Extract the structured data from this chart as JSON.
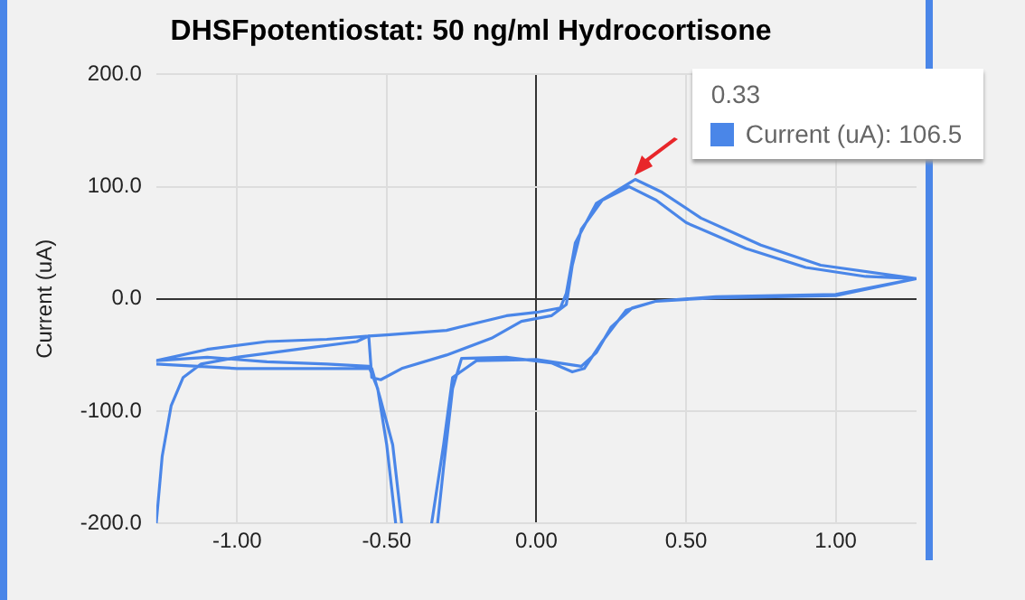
{
  "chart_data": {
    "type": "line",
    "title": "DHSFpotentiostat: 50 ng/ml Hydrocortisone",
    "ylabel": "Current (uA)",
    "series": [
      {
        "color": "#4a86e8",
        "x": [
          -1.27,
          -1.25,
          -1.22,
          -1.18,
          -1.12,
          -1.0,
          -0.8,
          -0.6,
          -0.56,
          -0.55,
          -0.52,
          -0.45,
          -0.3,
          -0.15,
          -0.05,
          0.05,
          0.1,
          0.12,
          0.15,
          0.22,
          0.31,
          0.4,
          0.5,
          0.7,
          0.9,
          1.1,
          1.27,
          1.0,
          0.6,
          0.4,
          0.3,
          0.22,
          0.16,
          0.12,
          0.05,
          -0.1,
          -0.25,
          -0.28,
          -0.31,
          -0.33,
          -0.4,
          -0.47,
          -0.5,
          -0.53,
          -0.56,
          -0.7,
          -0.9,
          -1.1,
          -1.27,
          -1.1,
          -0.9,
          -0.7,
          -0.56,
          -0.5,
          -0.3,
          -0.1,
          0.0,
          0.08,
          0.1,
          0.13,
          0.2,
          0.33,
          0.42,
          0.55,
          0.75,
          0.95,
          1.27,
          1.0,
          0.6,
          0.4,
          0.32,
          0.25,
          0.2,
          0.15,
          0.1,
          0.0,
          -0.2,
          -0.28,
          -0.31,
          -0.35,
          -0.4,
          -0.45,
          -0.48,
          -0.52,
          -0.55,
          -0.7,
          -1.0,
          -1.27
        ],
        "values": [
          -200,
          -140,
          -95,
          -70,
          -58,
          -52,
          -45,
          -38,
          -33,
          -70,
          -72,
          -62,
          -50,
          -35,
          -20,
          -15,
          -5,
          30,
          62,
          88,
          100,
          88,
          68,
          45,
          28,
          20,
          18,
          3,
          1,
          -2,
          -10,
          -38,
          -62,
          -65,
          -57,
          -52,
          -53,
          -80,
          -150,
          -200,
          null,
          -200,
          -130,
          -80,
          -60,
          -58,
          -56,
          -52,
          -55,
          -45,
          -38,
          -36,
          -33,
          -32,
          -28,
          -15,
          -12,
          -8,
          5,
          50,
          85,
          106.5,
          95,
          72,
          48,
          30,
          18,
          4,
          2,
          -2,
          -8,
          -25,
          -48,
          -60,
          -58,
          -54,
          -55,
          -70,
          -130,
          -200,
          null,
          -200,
          -130,
          -90,
          -62,
          -62,
          -62,
          -58
        ]
      }
    ],
    "xlim": [
      -1.27,
      1.27
    ],
    "xticks": [
      {
        "value": -1,
        "label": "-1.00"
      },
      {
        "value": -0.5,
        "label": "-0.50"
      },
      {
        "value": 0,
        "label": "0.00"
      },
      {
        "value": 0.5,
        "label": "0.50"
      },
      {
        "value": 1,
        "label": "1.00"
      }
    ],
    "ylim": [
      -200,
      200
    ],
    "yticks": [
      {
        "value": -200,
        "label": "-200.0"
      },
      {
        "value": -100,
        "label": "-100.0"
      },
      {
        "value": 0,
        "label": "0.0"
      },
      {
        "value": 100,
        "label": "100.0"
      },
      {
        "value": 200,
        "label": "200.0"
      }
    ],
    "grid": true,
    "legend": false,
    "marker": "none",
    "line_style": "solid",
    "annotations": [
      "0.33",
      "Current (uA): 106.5"
    ]
  }
}
